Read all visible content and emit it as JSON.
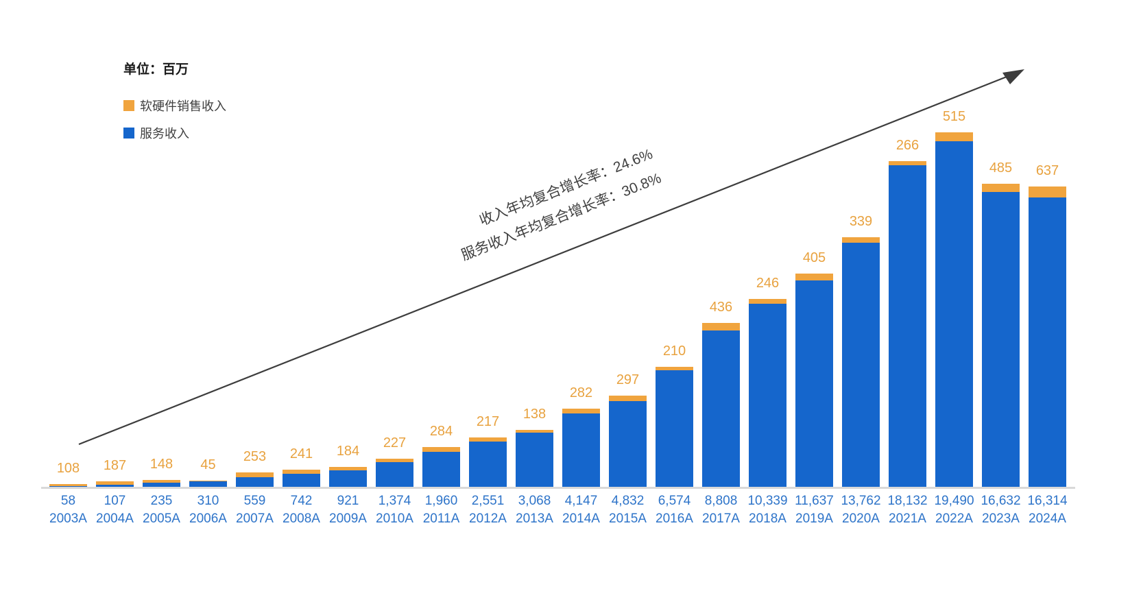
{
  "unit_label": "单位：百万",
  "legend": [
    {
      "label": "软硬件销售收入",
      "color": "#f0a43e"
    },
    {
      "label": "服务收入",
      "color": "#1566cc"
    }
  ],
  "annotations": {
    "revenue_cagr": "收入年均复合增长率：24.6%",
    "service_cagr": "服务收入年均复合增长率：30.8%"
  },
  "colors": {
    "bar_service_blue": "#1566cc",
    "bar_hardware_orange": "#f0a43e",
    "top_label_orange": "#e8a23f",
    "bottom_label_blue": "#2e74c9",
    "arrow_dark": "#3d3d3d",
    "axis_gray": "#d9d9d9"
  },
  "chart_data": {
    "type": "bar",
    "stacked": true,
    "grid": false,
    "legend_position": "top-left",
    "ylim": [
      0,
      20800
    ],
    "categories": [
      "2003A",
      "2004A",
      "2005A",
      "2006A",
      "2007A",
      "2008A",
      "2009A",
      "2010A",
      "2011A",
      "2012A",
      "2013A",
      "2014A",
      "2015A",
      "2016A",
      "2017A",
      "2018A",
      "2019A",
      "2020A",
      "2021A",
      "2022A",
      "2023A",
      "2024A"
    ],
    "series": [
      {
        "name": "服务收入",
        "color": "#1566cc",
        "values": [
          58,
          107,
          235,
          310,
          559,
          742,
          921,
          1374,
          1960,
          2551,
          3068,
          4147,
          4832,
          6574,
          8808,
          10339,
          11637,
          13762,
          18132,
          19490,
          16632,
          16314
        ]
      },
      {
        "name": "软硬件销售收入",
        "color": "#f0a43e",
        "values": [
          108,
          187,
          148,
          45,
          253,
          241,
          184,
          227,
          284,
          217,
          138,
          282,
          297,
          210,
          436,
          246,
          405,
          339,
          266,
          515,
          485,
          637
        ]
      }
    ],
    "top_labels": [
      "108",
      "187",
      "148",
      "45",
      "253",
      "241",
      "184",
      "227",
      "284",
      "217",
      "138",
      "282",
      "297",
      "210",
      "436",
      "246",
      "405",
      "339",
      "266",
      "515",
      "485",
      "637"
    ],
    "bottom_value_labels": [
      "58",
      "107",
      "235",
      "310",
      "559",
      "742",
      "921",
      "1,374",
      "1,960",
      "2,551",
      "3,068",
      "4,147",
      "4,832",
      "6,574",
      "8,808",
      "10,339",
      "11,637",
      "13,762",
      "18,132",
      "19,490",
      "16,632",
      "16,314"
    ]
  }
}
